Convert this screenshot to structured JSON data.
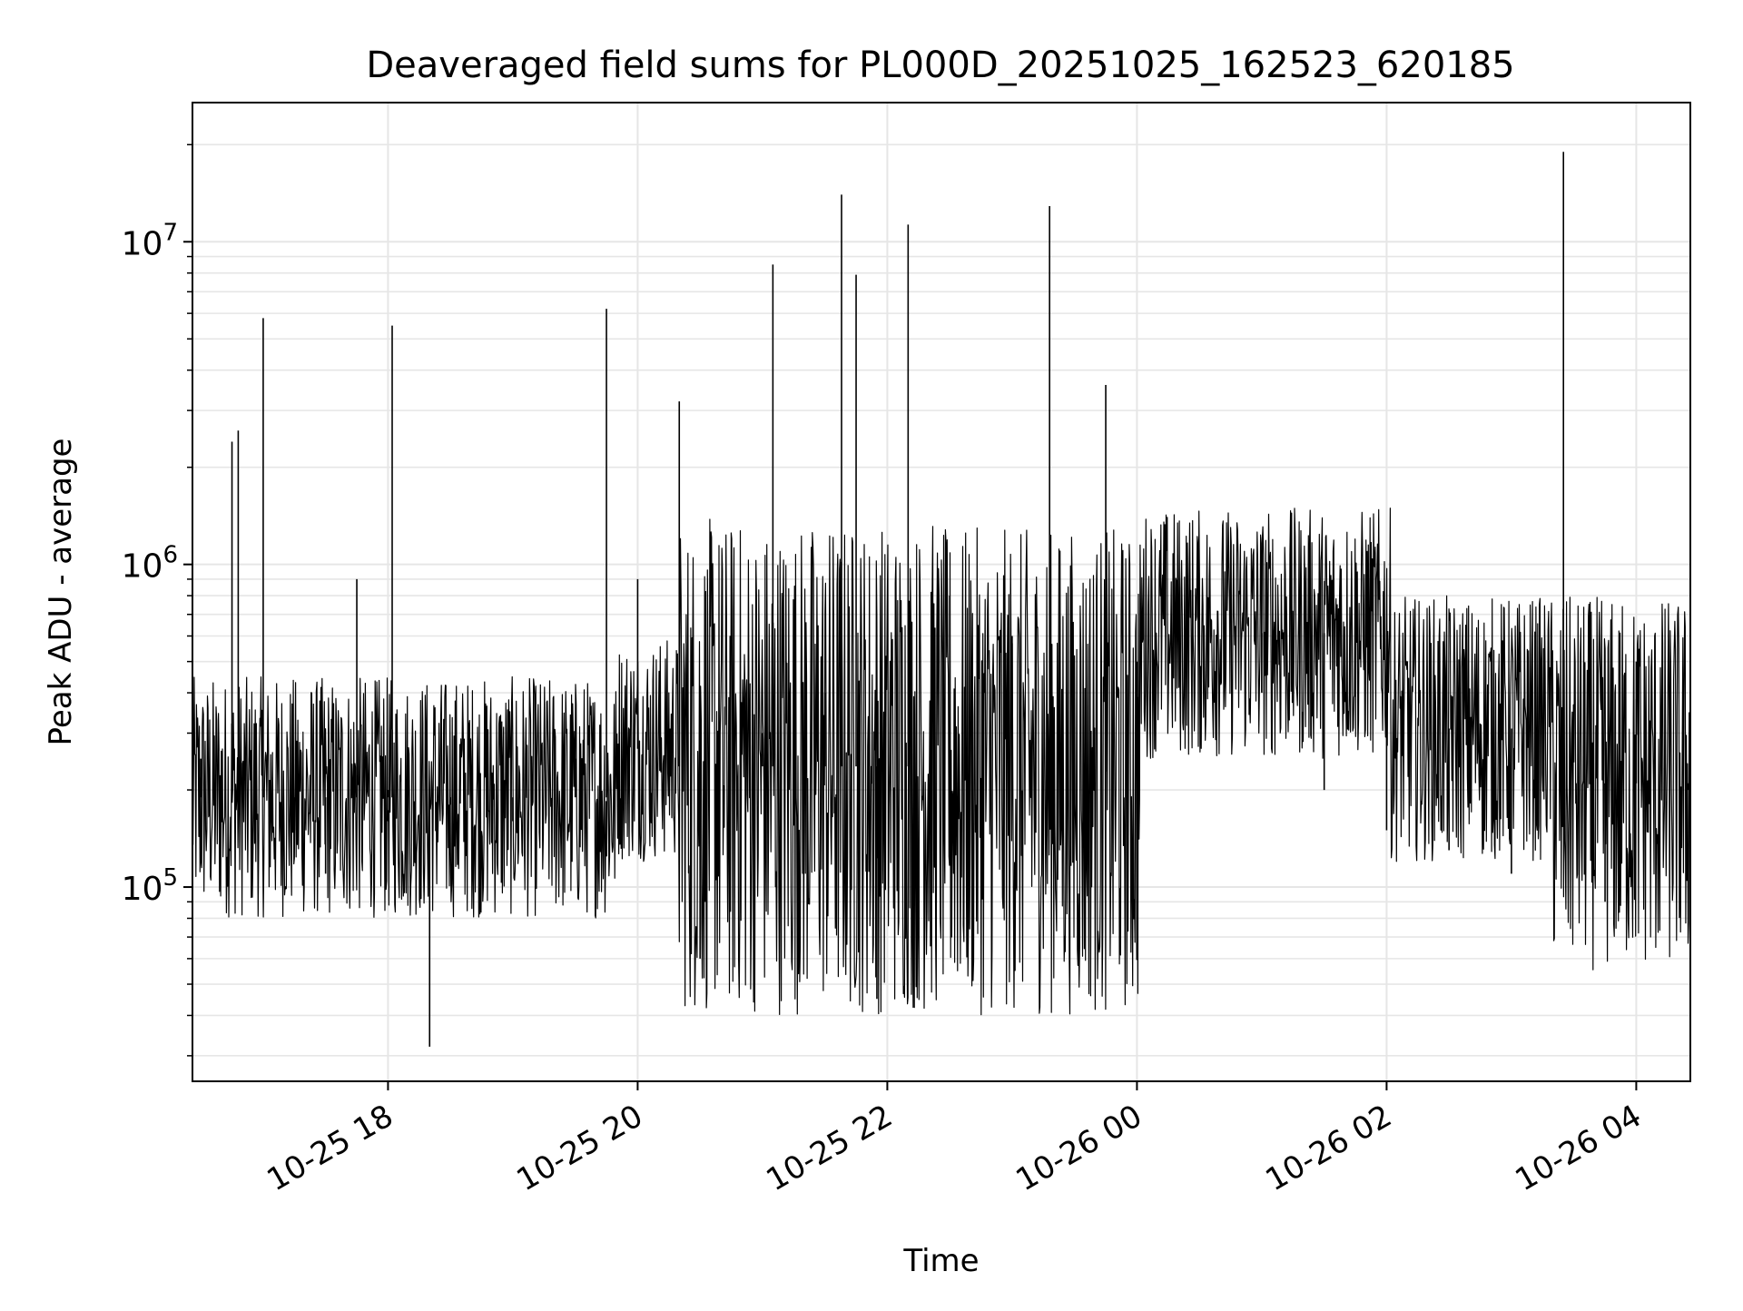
{
  "chart_data": {
    "type": "line",
    "title": "Deaveraged field sums for PL000D_20251025_162523_620185",
    "xlabel": "Time",
    "ylabel": "Peak ADU - average",
    "yscale": "log",
    "ylim": [
      25000,
      27000000
    ],
    "xlim": [
      "2025-10-25 16:26",
      "2025-10-26 04:26"
    ],
    "grid": true,
    "line_color": "#000000",
    "grid_color": "#e6e6e6",
    "x_ticks": [
      {
        "value": "2025-10-25 18:00",
        "label": "10-25 18"
      },
      {
        "value": "2025-10-25 20:00",
        "label": "10-25 20"
      },
      {
        "value": "2025-10-25 22:00",
        "label": "10-25 22"
      },
      {
        "value": "2025-10-26 00:00",
        "label": "10-26 00"
      },
      {
        "value": "2025-10-26 02:00",
        "label": "10-26 02"
      },
      {
        "value": "2025-10-26 04:00",
        "label": "10-26 04"
      }
    ],
    "y_ticks": [
      {
        "value": 100000,
        "base": "10",
        "exp": "5"
      },
      {
        "value": 1000000,
        "base": "10",
        "exp": "6"
      },
      {
        "value": 10000000,
        "base": "10",
        "exp": "7"
      }
    ],
    "series": [
      {
        "values": [
          {
            "x": "2025-10-25 16:30",
            "y": 250000
          },
          {
            "x": "2025-10-25 16:45",
            "y": 2400000
          },
          {
            "x": "2025-10-25 16:48",
            "y": 2600000
          },
          {
            "x": "2025-10-25 17:00",
            "y": 5800000
          },
          {
            "x": "2025-10-25 17:15",
            "y": 150000
          },
          {
            "x": "2025-10-25 17:30",
            "y": 110000
          },
          {
            "x": "2025-10-25 17:45",
            "y": 900000
          },
          {
            "x": "2025-10-25 18:00",
            "y": 200000
          },
          {
            "x": "2025-10-25 18:02",
            "y": 5500000
          },
          {
            "x": "2025-10-25 18:20",
            "y": 32000
          },
          {
            "x": "2025-10-25 18:30",
            "y": 180000
          },
          {
            "x": "2025-10-25 19:00",
            "y": 160000
          },
          {
            "x": "2025-10-25 19:30",
            "y": 250000
          },
          {
            "x": "2025-10-25 19:45",
            "y": 6200000
          },
          {
            "x": "2025-10-25 20:00",
            "y": 900000
          },
          {
            "x": "2025-10-25 20:20",
            "y": 3200000
          },
          {
            "x": "2025-10-25 20:30",
            "y": 60000
          },
          {
            "x": "2025-10-25 21:00",
            "y": 300000
          },
          {
            "x": "2025-10-25 21:05",
            "y": 8500000
          },
          {
            "x": "2025-10-25 21:30",
            "y": 400000
          },
          {
            "x": "2025-10-25 21:38",
            "y": 14000000
          },
          {
            "x": "2025-10-25 21:45",
            "y": 7900000
          },
          {
            "x": "2025-10-25 21:55",
            "y": 45000
          },
          {
            "x": "2025-10-25 22:10",
            "y": 11300000
          },
          {
            "x": "2025-10-25 22:30",
            "y": 800000
          },
          {
            "x": "2025-10-25 23:00",
            "y": 600000
          },
          {
            "x": "2025-10-25 23:18",
            "y": 12900000
          },
          {
            "x": "2025-10-25 23:45",
            "y": 3600000
          },
          {
            "x": "2025-10-26 00:00",
            "y": 500000
          },
          {
            "x": "2025-10-26 00:30",
            "y": 600000
          },
          {
            "x": "2025-10-26 01:00",
            "y": 400000
          },
          {
            "x": "2025-10-26 01:30",
            "y": 200000
          },
          {
            "x": "2025-10-26 02:00",
            "y": 150000
          },
          {
            "x": "2025-10-26 02:30",
            "y": 130000
          },
          {
            "x": "2025-10-26 03:00",
            "y": 110000
          },
          {
            "x": "2025-10-26 03:25",
            "y": 19000000
          },
          {
            "x": "2025-10-26 03:45",
            "y": 90000
          },
          {
            "x": "2025-10-26 04:00",
            "y": 500000
          },
          {
            "x": "2025-10-26 04:25",
            "y": 200000
          }
        ]
      }
    ]
  }
}
